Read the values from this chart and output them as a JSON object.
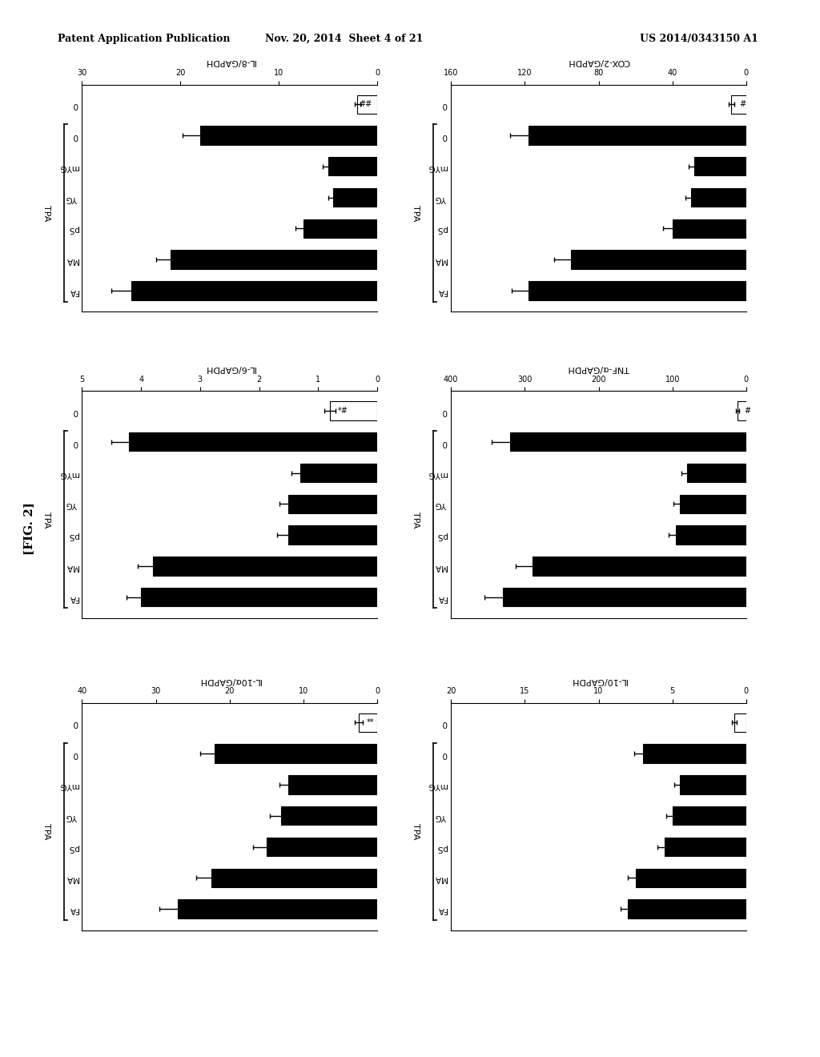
{
  "header_left": "Patent Application Publication",
  "header_mid": "Nov. 20, 2014  Sheet 4 of 21",
  "header_right": "US 2014/0343150 A1",
  "fig_label": "[FIG. 2]",
  "background_color": "#ffffff",
  "charts": [
    {
      "title": "IL-8/GAPDH",
      "xlim": [
        0,
        30
      ],
      "xticks": [
        0,
        10,
        20,
        30
      ],
      "categories": [
        "0",
        "0",
        "mYG",
        "YG",
        "pS",
        "MA",
        "FA"
      ],
      "values": [
        2.0,
        18.0,
        5.0,
        4.5,
        7.5,
        21.0,
        25.0
      ],
      "errors": [
        0.3,
        1.8,
        0.5,
        0.5,
        0.8,
        1.5,
        2.0
      ],
      "bar_colors": [
        "white",
        "black",
        "black",
        "black",
        "black",
        "black",
        "black"
      ],
      "significance": [
        "##",
        "",
        "*",
        "*",
        "*",
        "",
        ""
      ],
      "tpa_group": [
        false,
        true,
        true,
        true,
        true,
        true,
        true
      ],
      "tpa_label": "TPA"
    },
    {
      "title": "COX-2/GAPDH",
      "xlim": [
        0,
        160
      ],
      "xticks": [
        0,
        40,
        80,
        120,
        160
      ],
      "categories": [
        "0",
        "0",
        "mYG",
        "YG",
        "pS",
        "MA",
        "FA"
      ],
      "values": [
        8.0,
        118.0,
        28.0,
        30.0,
        40.0,
        95.0,
        118.0
      ],
      "errors": [
        1.5,
        10.0,
        3.0,
        3.0,
        5.0,
        9.0,
        9.0
      ],
      "bar_colors": [
        "white",
        "black",
        "black",
        "black",
        "black",
        "black",
        "black"
      ],
      "significance": [
        "#",
        "",
        "*",
        "*",
        "",
        "",
        ""
      ],
      "tpa_group": [
        false,
        true,
        true,
        true,
        true,
        true,
        true
      ],
      "tpa_label": "TPA"
    },
    {
      "title": "IL-6/GAPDH",
      "xlim": [
        0,
        5
      ],
      "xticks": [
        0,
        1,
        2,
        3,
        4,
        5
      ],
      "categories": [
        "0",
        "0",
        "mYG",
        "YG",
        "pS",
        "MA",
        "FA"
      ],
      "values": [
        0.8,
        4.2,
        1.3,
        1.5,
        1.5,
        3.8,
        4.0
      ],
      "errors": [
        0.1,
        0.3,
        0.15,
        0.15,
        0.2,
        0.25,
        0.25
      ],
      "bar_colors": [
        "white",
        "black",
        "black",
        "black",
        "black",
        "black",
        "black"
      ],
      "significance": [
        "*#",
        "",
        "*",
        "*",
        "**",
        "",
        ""
      ],
      "tpa_group": [
        false,
        true,
        true,
        true,
        true,
        true,
        true
      ],
      "tpa_label": "TPA"
    },
    {
      "title": "TNF-α/GAPDH",
      "xlim": [
        0,
        400
      ],
      "xticks": [
        0,
        100,
        200,
        300,
        400
      ],
      "categories": [
        "0",
        "0",
        "mYG",
        "YG",
        "pS",
        "MA",
        "FA"
      ],
      "values": [
        12.0,
        320.0,
        80.0,
        90.0,
        95.0,
        290.0,
        330.0
      ],
      "errors": [
        2.0,
        25.0,
        8.0,
        9.0,
        10.0,
        22.0,
        25.0
      ],
      "bar_colors": [
        "white",
        "black",
        "black",
        "black",
        "black",
        "black",
        "black"
      ],
      "significance": [
        "#",
        "",
        "*",
        "*",
        "*",
        "**",
        "*"
      ],
      "tpa_group": [
        false,
        true,
        true,
        true,
        true,
        true,
        true
      ],
      "tpa_label": "TPA"
    },
    {
      "title": "IL-10α/GAPDH",
      "xlim": [
        0,
        40
      ],
      "xticks": [
        0,
        10,
        20,
        30,
        40
      ],
      "categories": [
        "0",
        "0",
        "mYG",
        "YG",
        "pS",
        "MA",
        "FA"
      ],
      "values": [
        2.5,
        22.0,
        12.0,
        13.0,
        15.0,
        22.5,
        27.0
      ],
      "errors": [
        0.5,
        2.0,
        1.2,
        1.5,
        1.8,
        2.0,
        2.5
      ],
      "bar_colors": [
        "white",
        "black",
        "black",
        "black",
        "black",
        "black",
        "black"
      ],
      "significance": [
        "**",
        "",
        "*",
        "*",
        "**",
        "",
        ""
      ],
      "tpa_group": [
        false,
        true,
        true,
        true,
        true,
        true,
        true
      ],
      "tpa_label": "TPA"
    },
    {
      "title": "IL-10/GAPDH",
      "xlim": [
        0,
        20
      ],
      "xticks": [
        0,
        5,
        10,
        15,
        20
      ],
      "categories": [
        "0",
        "0",
        "mYG",
        "YG",
        "pS",
        "MA",
        "FA"
      ],
      "values": [
        0.8,
        7.0,
        4.5,
        5.0,
        5.5,
        7.5,
        8.0
      ],
      "errors": [
        0.15,
        0.6,
        0.4,
        0.4,
        0.5,
        0.5,
        0.5
      ],
      "bar_colors": [
        "white",
        "black",
        "black",
        "black",
        "black",
        "black",
        "black"
      ],
      "significance": [
        "",
        "",
        "*",
        "*",
        "",
        "",
        ""
      ],
      "tpa_group": [
        false,
        true,
        true,
        true,
        true,
        true,
        true
      ],
      "tpa_label": "TPA"
    }
  ]
}
